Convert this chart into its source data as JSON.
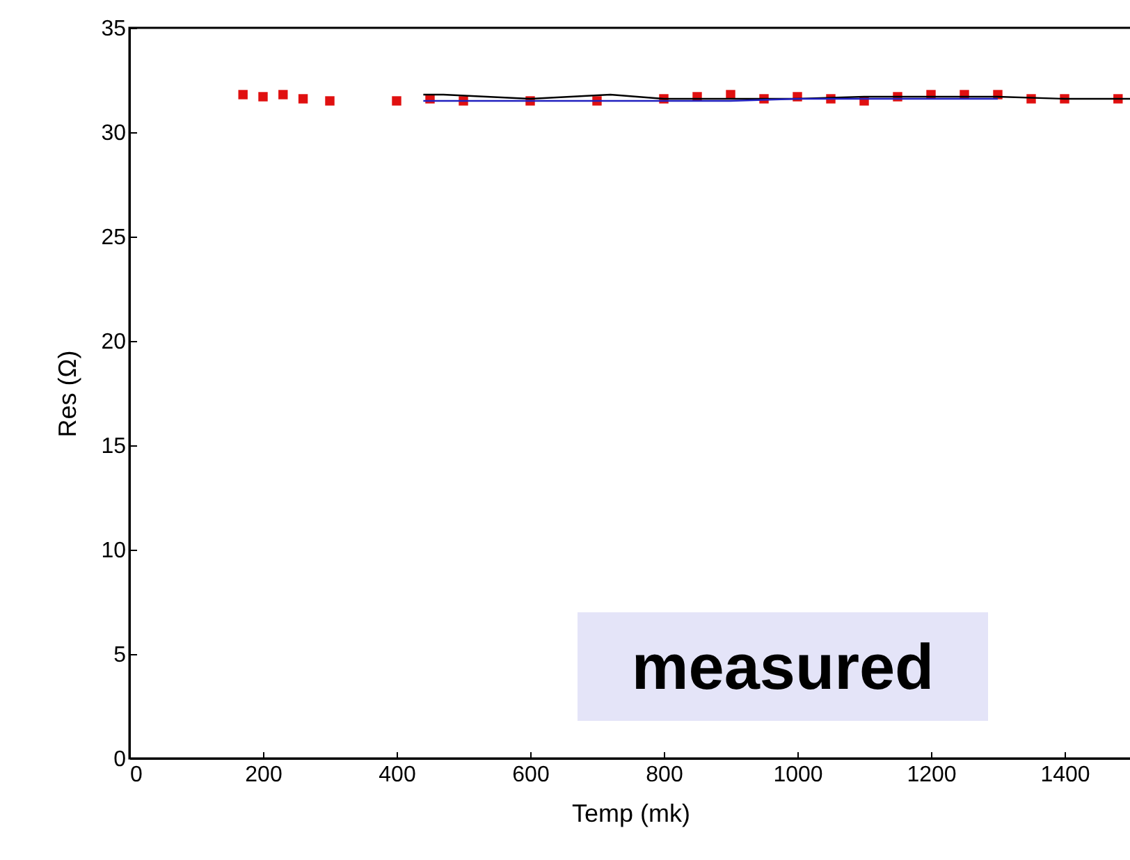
{
  "chart_data": {
    "type": "scatter",
    "xlabel": "Temp (mk)",
    "ylabel": "Res (Ω)",
    "xlim": [
      0,
      1500
    ],
    "ylim": [
      0,
      35
    ],
    "xticks": [
      0,
      200,
      400,
      600,
      800,
      1000,
      1200,
      1400
    ],
    "yticks": [
      0,
      5,
      10,
      15,
      20,
      25,
      30,
      35
    ],
    "grid": false,
    "annotations": [
      "measured"
    ],
    "series": [
      {
        "type": "line",
        "color": "#000000",
        "x": [
          440,
          470,
          600,
          720,
          800,
          900,
          1000,
          1100,
          1200,
          1300,
          1400,
          1500
        ],
        "values": [
          31.8,
          31.8,
          31.6,
          31.8,
          31.6,
          31.6,
          31.6,
          31.7,
          31.7,
          31.7,
          31.6,
          31.6
        ]
      },
      {
        "type": "line",
        "color": "#2020c0",
        "x": [
          440,
          500,
          600,
          700,
          800,
          900,
          1000,
          1100,
          1200,
          1300
        ],
        "values": [
          31.5,
          31.5,
          31.5,
          31.5,
          31.5,
          31.5,
          31.6,
          31.6,
          31.6,
          31.6
        ]
      },
      {
        "marker": "square",
        "color": "#e01010",
        "x": [
          170,
          200,
          230,
          260,
          300,
          400,
          450,
          500,
          600,
          700,
          800,
          850,
          900,
          950,
          1000,
          1050,
          1100,
          1150,
          1200,
          1250,
          1300,
          1350,
          1400,
          1480
        ],
        "values": [
          31.8,
          31.7,
          31.8,
          31.6,
          31.5,
          31.5,
          31.6,
          31.5,
          31.5,
          31.5,
          31.6,
          31.7,
          31.8,
          31.6,
          31.7,
          31.6,
          31.5,
          31.7,
          31.8,
          31.8,
          31.8,
          31.6,
          31.6,
          31.6
        ]
      }
    ]
  }
}
